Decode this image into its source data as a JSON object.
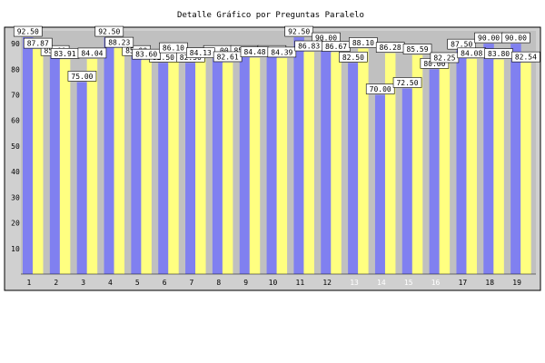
{
  "chart_data": {
    "type": "bar",
    "title": "Detalle Gráfico por Preguntas Paralelo",
    "categories": [
      "1",
      "2",
      "3",
      "4",
      "5",
      "6",
      "7",
      "8",
      "9",
      "10",
      "11",
      "12",
      "13",
      "14",
      "15",
      "16",
      "17",
      "18",
      "19"
    ],
    "ylim": [
      0,
      95
    ],
    "yticks": [
      "10",
      "20",
      "30",
      "40",
      "50",
      "60",
      "70",
      "80",
      "90"
    ],
    "grid": false,
    "series": [
      {
        "values": [
          92.5,
          85.0,
          75.0,
          92.5,
          85.0,
          82.5,
          82.5,
          85.0,
          85.0,
          85.0,
          92.5,
          90.0,
          82.5,
          70.0,
          72.5,
          80.0,
          87.5,
          90.0,
          90.0
        ],
        "color": "#8080f0"
      },
      {
        "values": [
          87.87,
          83.91,
          84.04,
          88.23,
          83.6,
          86.1,
          84.13,
          82.61,
          84.48,
          84.39,
          86.83,
          86.67,
          88.1,
          86.28,
          85.59,
          82.25,
          84.08,
          83.8,
          82.54
        ],
        "color": "#ffff80"
      }
    ],
    "colors": {
      "plot_background": "#c0c0c0",
      "frame_background": "#d0d0d0",
      "highlight_tick": "#ffffff"
    }
  }
}
